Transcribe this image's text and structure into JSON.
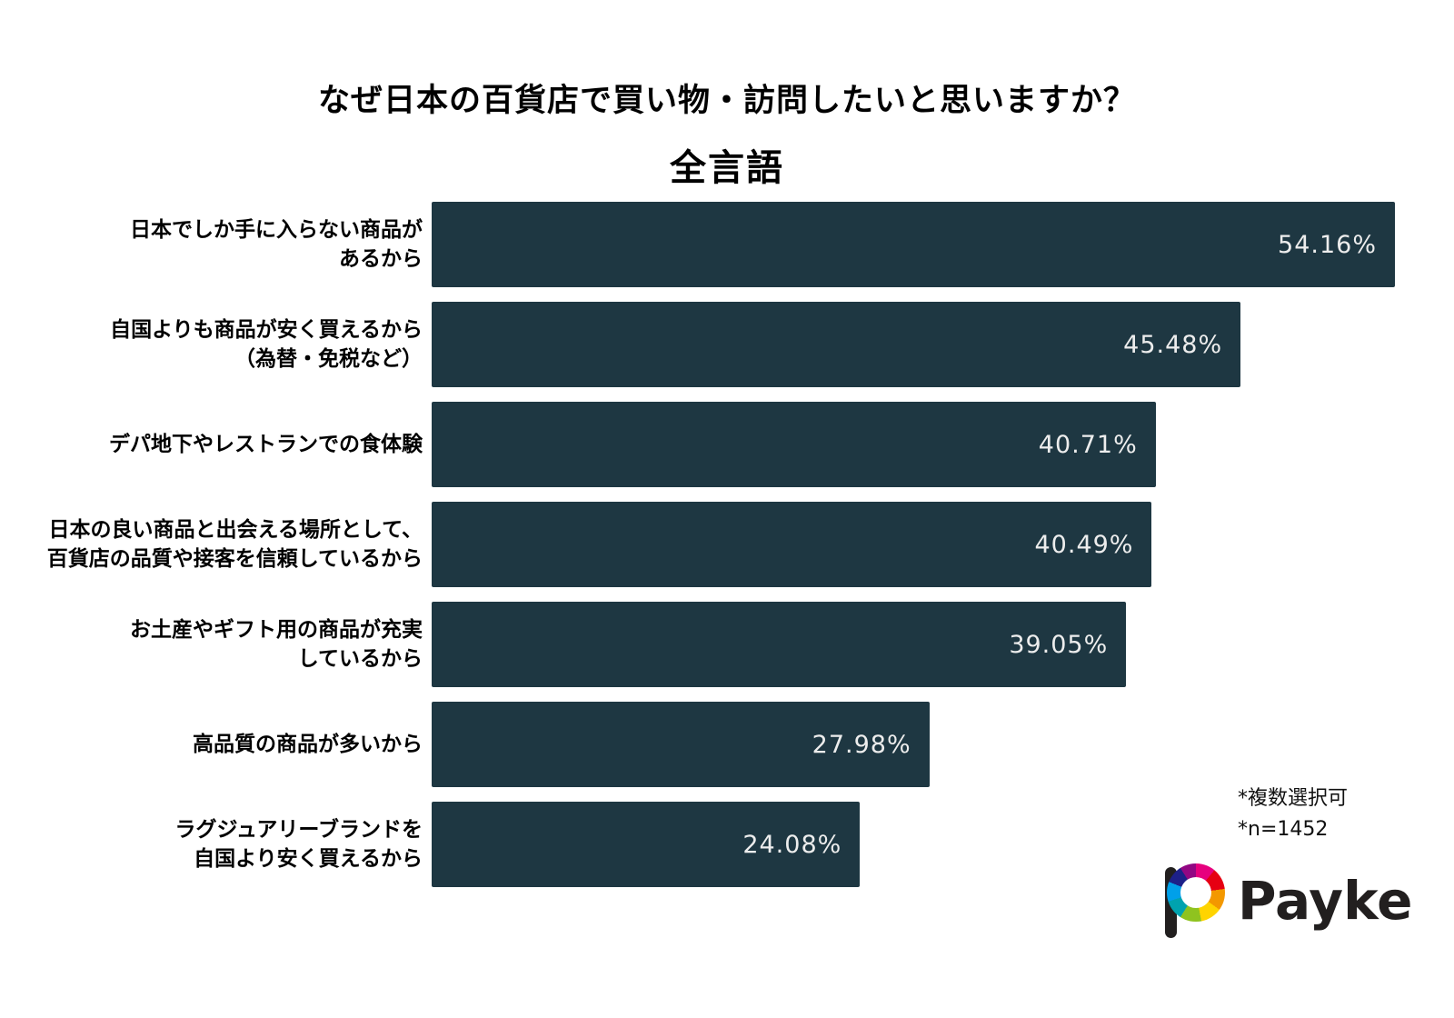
{
  "header": {
    "title": "なぜ日本の百貨店で買い物・訪問したいと思いますか？",
    "subtitle": "全言語"
  },
  "chart_data": {
    "type": "bar",
    "orientation": "horizontal",
    "title": "なぜ日本の百貨店で買い物・訪問したいと思いますか？",
    "subtitle": "全言語",
    "categories": [
      "日本でしか手に入らない商品が\nあるから",
      "自国よりも商品が安く買えるから\n（為替・免税など）",
      "デパ地下やレストランでの食体験",
      "日本の良い商品と出会える場所として、\n百貨店の品質や接客を信頼しているから",
      "お土産やギフト用の商品が充実\nしているから",
      "高品質の商品が多いから",
      "ラグジュアリーブランドを\n自国より安く買えるから"
    ],
    "values": [
      54.16,
      45.48,
      40.71,
      40.49,
      39.05,
      27.98,
      24.08
    ],
    "value_labels": [
      "54.16%",
      "45.48%",
      "40.71%",
      "40.49%",
      "39.05%",
      "27.98%",
      "24.08%"
    ],
    "xlim": [
      0,
      54.16
    ],
    "bar_color": "#1e3742",
    "value_label_color": "#ededed",
    "grid": false,
    "legend": false
  },
  "notes": {
    "line1": "*複数選択可",
    "line2": "*n=1452"
  },
  "logo": {
    "text": "Payke"
  }
}
